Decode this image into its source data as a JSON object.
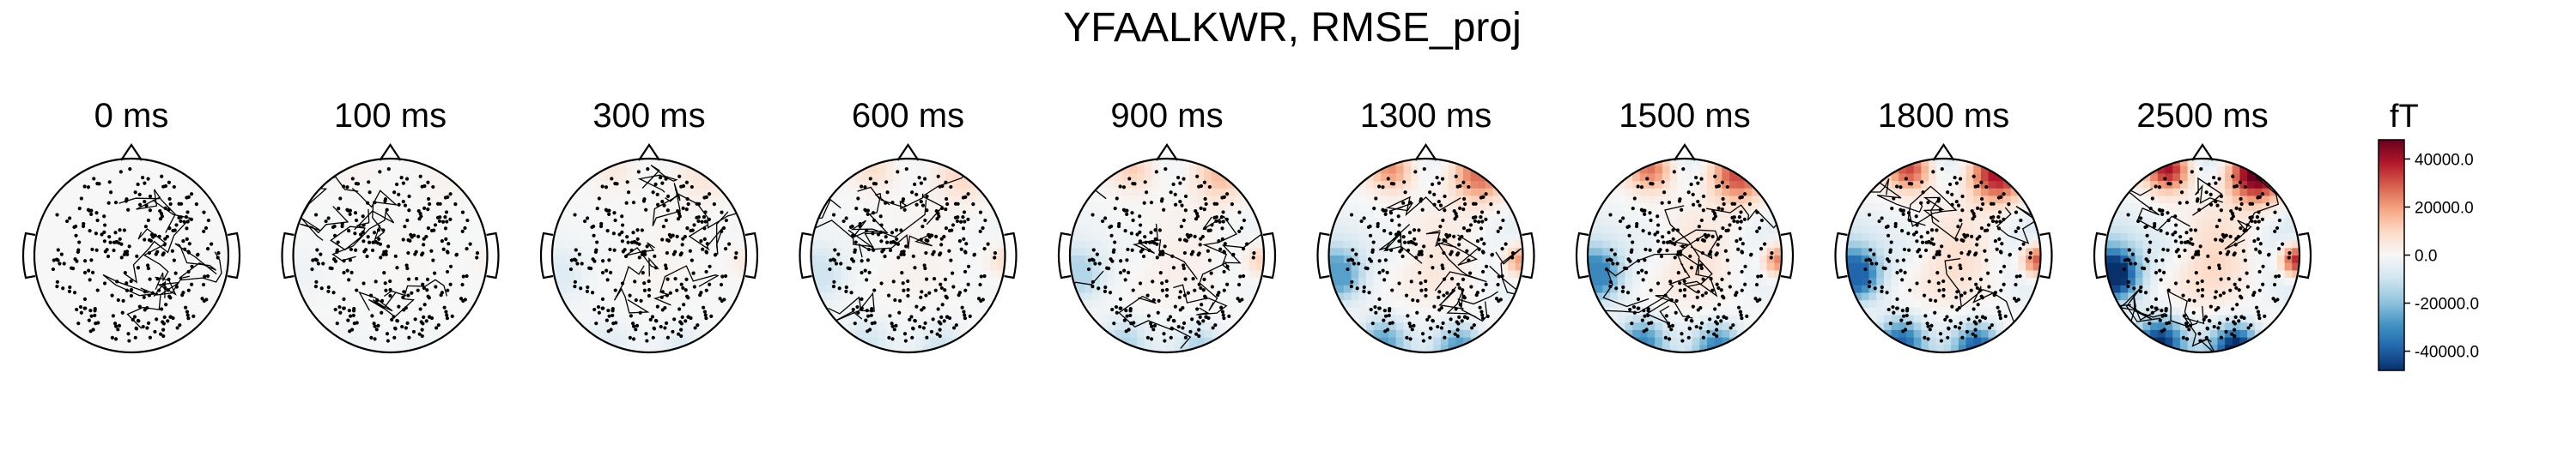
{
  "chart_data": {
    "type": "heatmap",
    "title": "YFAALKWR, RMSE_proj",
    "colorbar": {
      "unit": "fT",
      "ticks": [
        "40000.0",
        "20000.0",
        "0.0",
        "-20000.0",
        "-40000.0"
      ],
      "tick_values": [
        40000,
        20000,
        0,
        -20000,
        -40000
      ],
      "vmin": -48000,
      "vmax": 48000,
      "colormap": [
        "#08306b",
        "#2166ac",
        "#4393c3",
        "#92c5de",
        "#d1e5f0",
        "#f7f7f7",
        "#fddbc7",
        "#f4a582",
        "#d6604d",
        "#b2182b",
        "#67001f"
      ]
    },
    "topomaps": [
      {
        "time": "0 ms",
        "amplitude": 0.0
      },
      {
        "time": "100 ms",
        "amplitude": 0.04
      },
      {
        "time": "300 ms",
        "amplitude": 0.12
      },
      {
        "time": "600 ms",
        "amplitude": 0.2
      },
      {
        "time": "900 ms",
        "amplitude": 0.3
      },
      {
        "time": "1300 ms",
        "amplitude": 0.55
      },
      {
        "time": "1500 ms",
        "amplitude": 0.65
      },
      {
        "time": "1800 ms",
        "amplitude": 0.8
      },
      {
        "time": "2500 ms",
        "amplitude": 1.0
      }
    ]
  }
}
